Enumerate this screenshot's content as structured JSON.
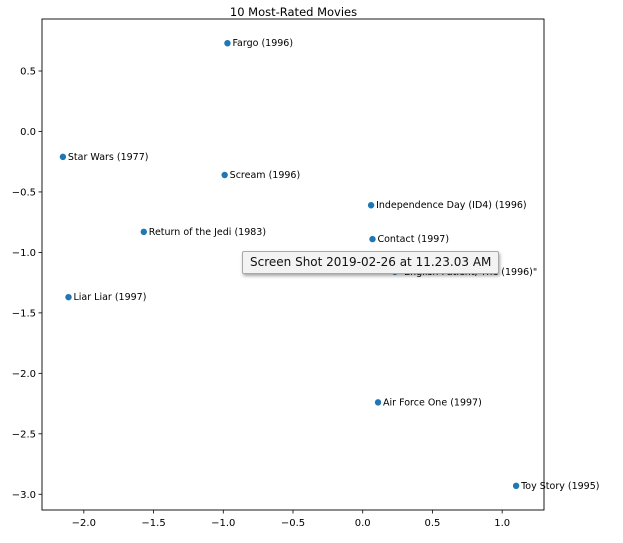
{
  "chart_data": {
    "type": "scatter",
    "title": "10 Most-Rated Movies",
    "xlabel": "",
    "ylabel": "",
    "xlim": [
      -2.3,
      1.3
    ],
    "ylim": [
      -3.13,
      0.93
    ],
    "xticks": [
      "−2.0",
      "−1.5",
      "−1.0",
      "−0.5",
      "0.0",
      "0.5",
      "1.0"
    ],
    "yticks": [
      "0.5",
      "0.0",
      "−0.5",
      "−1.0",
      "−1.5",
      "−2.0",
      "−2.5",
      "−3.0"
    ],
    "xtick_values": [
      -2.0,
      -1.5,
      -1.0,
      -0.5,
      0.0,
      0.5,
      1.0
    ],
    "ytick_values": [
      0.5,
      0.0,
      -0.5,
      -1.0,
      -1.5,
      -2.0,
      -2.5,
      -3.0
    ],
    "grid": false,
    "point_color": "#1f77b4",
    "points": [
      {
        "label": "Fargo (1996)",
        "x": -0.97,
        "y": 0.73
      },
      {
        "label": "Star Wars (1977)",
        "x": -2.15,
        "y": -0.21
      },
      {
        "label": "Scream (1996)",
        "x": -0.99,
        "y": -0.36
      },
      {
        "label": "Independence Day (ID4) (1996)",
        "x": 0.06,
        "y": -0.61
      },
      {
        "label": "Return of the Jedi (1983)",
        "x": -1.57,
        "y": -0.83
      },
      {
        "label": "Contact (1997)",
        "x": 0.07,
        "y": -0.89
      },
      {
        "label": "\"English Patient, The (1996)\"",
        "x": 0.23,
        "y": -1.16
      },
      {
        "label": "Liar Liar (1997)",
        "x": -2.11,
        "y": -1.37
      },
      {
        "label": "Air Force One (1997)",
        "x": 0.11,
        "y": -2.24
      },
      {
        "label": "Toy Story (1995)",
        "x": 1.1,
        "y": -2.93
      }
    ]
  },
  "tooltip": {
    "text": "Screen Shot 2019-02-26 at 11.23.03 AM"
  }
}
